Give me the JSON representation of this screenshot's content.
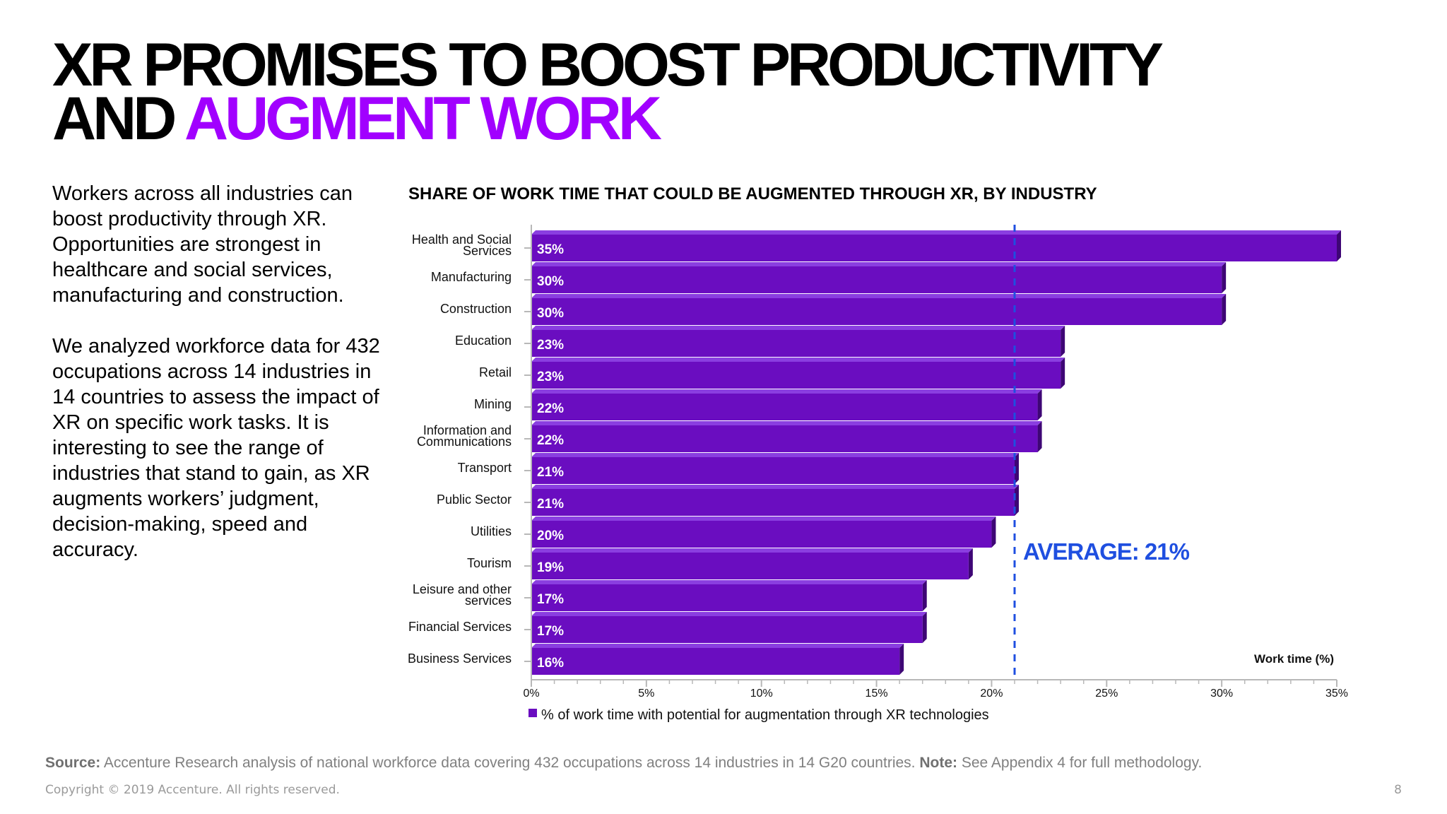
{
  "slide": {
    "title_line1": "XR PROMISES TO BOOST PRODUCTIVITY",
    "title_line2_part1": "AND ",
    "title_line2_accent": "AUGMENT WORK",
    "paragraph1": "Workers across all industries can boost productivity through XR. Opportunities are strongest in healthcare and social services, manufacturing and construction.",
    "paragraph2": "We analyzed workforce data for 432 occupations across 14 industries in 14 countries to assess the impact of XR on specific work tasks. It is interesting to see the range of industries that stand to gain, as XR augments workers’ judgment, decision-making, speed and accuracy.",
    "source_label": "Source:",
    "source_text": " Accenture Research analysis of national workforce data covering 432 occupations across 14 industries in 14 G20 countries. ",
    "note_label": "Note:",
    "note_text": " See Appendix 4 for full methodology.",
    "copyright": "Copyright © 2019 Accenture. All rights reserved.",
    "page_number": "8"
  },
  "colors": {
    "bar": "#6a0dc0",
    "bar_top": "#8a3ee0",
    "bar_edge": "#3e0675",
    "accent": "#a100ff",
    "average_line": "#1f4fe0",
    "axis": "#b8b8b8"
  },
  "chart_data": {
    "type": "bar",
    "orientation": "horizontal",
    "title": "SHARE OF WORK TIME THAT COULD BE AUGMENTED THROUGH XR, BY INDUSTRY",
    "categories": [
      "Health and Social Services",
      "Manufacturing",
      "Construction",
      "Education",
      "Retail",
      "Mining",
      "Information and Communications",
      "Transport",
      "Public Sector",
      "Utilities",
      "Tourism",
      "Leisure and other services",
      "Financial Services",
      "Business Services"
    ],
    "series": [
      {
        "name": "% of work time with potential for augmentation through XR technologies",
        "values": [
          35,
          30,
          30,
          23,
          23,
          22,
          22,
          21,
          21,
          20,
          19,
          17,
          17,
          16
        ]
      }
    ],
    "data_labels": [
      "35%",
      "30%",
      "30%",
      "23%",
      "23%",
      "22%",
      "22%",
      "21%",
      "21%",
      "20%",
      "19%",
      "17%",
      "17%",
      "16%"
    ],
    "xlim": [
      0,
      35
    ],
    "x_ticks": [
      0,
      5,
      10,
      15,
      20,
      25,
      30,
      35
    ],
    "x_tick_labels": [
      "0%",
      "5%",
      "10%",
      "15%",
      "20%",
      "25%",
      "30%",
      "35%"
    ],
    "xlabel": "Work time (%)",
    "average": {
      "value": 21,
      "label": "AVERAGE: 21%"
    },
    "legend_position": "bottom-left",
    "grid": false
  }
}
